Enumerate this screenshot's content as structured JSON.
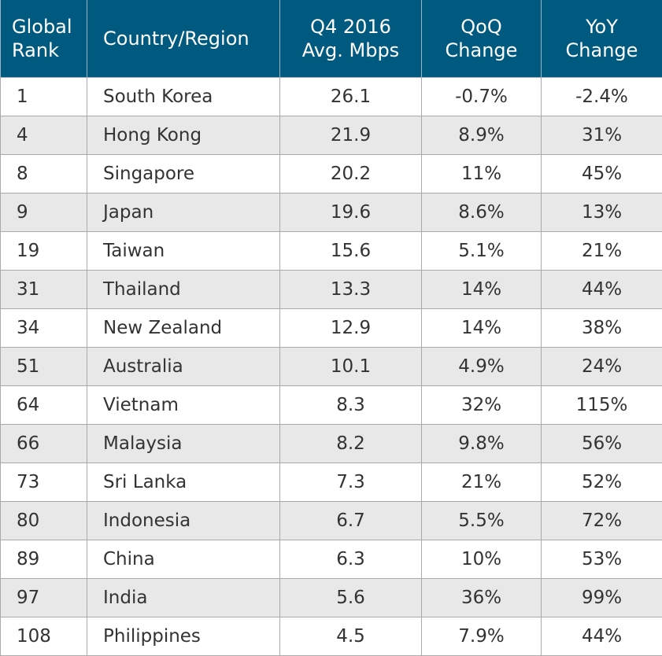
{
  "chart_data": {
    "type": "table",
    "columns": [
      "Global Rank",
      "Country/Region",
      "Q4 2016 Avg. Mbps",
      "QoQ Change",
      "YoY Change"
    ],
    "header_lines": [
      [
        "Global",
        "Rank"
      ],
      [
        "Country/Region"
      ],
      [
        "Q4 2016",
        "Avg. Mbps"
      ],
      [
        "QoQ",
        "Change"
      ],
      [
        "YoY",
        "Change"
      ]
    ],
    "rows": [
      [
        "1",
        "South Korea",
        "26.1",
        "-0.7%",
        "-2.4%"
      ],
      [
        "4",
        "Hong Kong",
        "21.9",
        "8.9%",
        "31%"
      ],
      [
        "8",
        "Singapore",
        "20.2",
        "11%",
        "45%"
      ],
      [
        "9",
        "Japan",
        "19.6",
        "8.6%",
        "13%"
      ],
      [
        "19",
        "Taiwan",
        "15.6",
        "5.1%",
        "21%"
      ],
      [
        "31",
        "Thailand",
        "13.3",
        "14%",
        "44%"
      ],
      [
        "34",
        "New Zealand",
        "12.9",
        "14%",
        "38%"
      ],
      [
        "51",
        "Australia",
        "10.1",
        "4.9%",
        "24%"
      ],
      [
        "64",
        "Vietnam",
        "8.3",
        "32%",
        "115%"
      ],
      [
        "66",
        "Malaysia",
        "8.2",
        "9.8%",
        "56%"
      ],
      [
        "73",
        "Sri Lanka",
        "7.3",
        "21%",
        "52%"
      ],
      [
        "80",
        "Indonesia",
        "6.7",
        "5.5%",
        "72%"
      ],
      [
        "89",
        "China",
        "6.3",
        "10%",
        "53%"
      ],
      [
        "97",
        "India",
        "5.6",
        "36%",
        "99%"
      ],
      [
        "108",
        "Philippines",
        "4.5",
        "7.9%",
        "44%"
      ]
    ],
    "colors": {
      "header_bg": "#005a80",
      "header_text": "#ffffff",
      "alt_row_bg": "#e8e8e8"
    }
  }
}
